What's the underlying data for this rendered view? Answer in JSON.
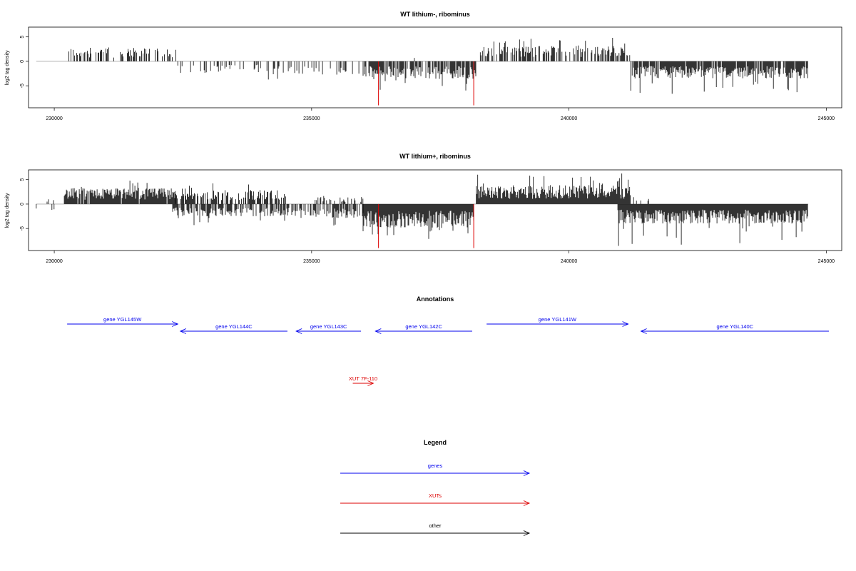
{
  "chart_data": [
    {
      "type": "bar",
      "title": "WT lithium-, ribominus",
      "ylabel": "log2 tag density",
      "xlim": [
        229500,
        245300
      ],
      "ylim": [
        -9.5,
        7
      ],
      "x_ticks": [
        230000,
        235000,
        240000,
        245000
      ],
      "x_tick_labels": [
        "230000",
        "235000",
        "240000",
        "245000"
      ],
      "y_ticks": [
        5,
        0,
        -5
      ],
      "y_tick_labels": [
        "5",
        "0",
        "-5"
      ],
      "baseline_range": [
        229650,
        244650
      ],
      "bar_color": "#000000",
      "highlight_color": "#dd0000",
      "segments": [
        {
          "start": 230270,
          "end": 232400,
          "sign": 1,
          "avg": 2.2,
          "max": 4.2,
          "density": 0.45
        },
        {
          "start": 232400,
          "end": 234200,
          "sign": -1,
          "avg": 1.9,
          "max": 3.8,
          "density": 0.32
        },
        {
          "start": 234200,
          "end": 236000,
          "sign": -1,
          "avg": 2.2,
          "max": 4.5,
          "density": 0.28
        },
        {
          "start": 236000,
          "end": 238200,
          "sign": -1,
          "avg": 2.9,
          "max": 6.2,
          "density": 0.75
        },
        {
          "start": 236900,
          "end": 237200,
          "sign": 1,
          "avg": 0.8,
          "max": 1.6,
          "density": 0.05
        },
        {
          "start": 238250,
          "end": 239850,
          "sign": 1,
          "avg": 2.5,
          "max": 5.0,
          "density": 0.6
        },
        {
          "start": 239850,
          "end": 241200,
          "sign": 1,
          "avg": 2.5,
          "max": 5.0,
          "density": 0.55
        },
        {
          "start": 241200,
          "end": 244650,
          "sign": -1,
          "avg": 2.8,
          "max": 6.7,
          "density": 0.9
        }
      ],
      "highlights": [
        {
          "x": 236300,
          "y": -9
        },
        {
          "x": 238150,
          "y": -9
        }
      ]
    },
    {
      "type": "bar",
      "title": "WT lithium+, ribominus",
      "ylabel": "log2 tag density",
      "xlim": [
        229500,
        245300
      ],
      "ylim": [
        -9.5,
        7
      ],
      "x_ticks": [
        230000,
        235000,
        240000,
        245000
      ],
      "x_tick_labels": [
        "230000",
        "235000",
        "240000",
        "245000"
      ],
      "y_ticks": [
        5,
        0,
        -5
      ],
      "y_tick_labels": [
        "5",
        "0",
        "-5"
      ],
      "baseline_range": [
        229650,
        244650
      ],
      "bar_color": "#000000",
      "highlight_color": "#dd0000",
      "segments": [
        {
          "start": 229650,
          "end": 230000,
          "sign": -1,
          "avg": 1.0,
          "max": 3.3,
          "density": 0.08
        },
        {
          "start": 229750,
          "end": 230050,
          "sign": 1,
          "avg": 0.8,
          "max": 1.3,
          "density": 0.06
        },
        {
          "start": 230180,
          "end": 232350,
          "sign": 1,
          "avg": 2.6,
          "max": 4.9,
          "density": 0.95
        },
        {
          "start": 232350,
          "end": 234500,
          "sign": 1,
          "avg": 2.3,
          "max": 4.3,
          "density": 0.55
        },
        {
          "start": 232300,
          "end": 234600,
          "sign": -1,
          "avg": 2.0,
          "max": 4.6,
          "density": 0.7
        },
        {
          "start": 234600,
          "end": 236000,
          "sign": -1,
          "avg": 2.3,
          "max": 5.9,
          "density": 0.55
        },
        {
          "start": 235000,
          "end": 236000,
          "sign": 1,
          "avg": 1.2,
          "max": 2.3,
          "density": 0.3
        },
        {
          "start": 236000,
          "end": 238150,
          "sign": -1,
          "avg": 3.9,
          "max": 7.4,
          "density": 1.0
        },
        {
          "start": 238200,
          "end": 241200,
          "sign": 1,
          "avg": 3.1,
          "max": 6.3,
          "density": 1.0
        },
        {
          "start": 241200,
          "end": 241600,
          "sign": 1,
          "avg": 0.9,
          "max": 1.9,
          "density": 0.2
        },
        {
          "start": 240950,
          "end": 244650,
          "sign": -1,
          "avg": 3.2,
          "max": 8.7,
          "density": 1.0
        }
      ],
      "highlights": [
        {
          "x": 236300,
          "y": -9
        },
        {
          "x": 238150,
          "y": -9
        }
      ]
    },
    {
      "type": "annotation-track",
      "title": "Annotations",
      "xlim": [
        229500,
        245300
      ],
      "features": [
        {
          "label": "gene YGL145W",
          "start": 230250,
          "end": 232400,
          "strand": "+",
          "kind": "gene",
          "row": 0
        },
        {
          "label": "gene YGL144C",
          "start": 232450,
          "end": 234530,
          "strand": "-",
          "kind": "gene",
          "row": 1
        },
        {
          "label": "gene YGL143C",
          "start": 234700,
          "end": 235960,
          "strand": "-",
          "kind": "gene",
          "row": 1
        },
        {
          "label": "gene YGL142C",
          "start": 236240,
          "end": 238120,
          "strand": "-",
          "kind": "gene",
          "row": 1
        },
        {
          "label": "gene YGL141W",
          "start": 238400,
          "end": 241150,
          "strand": "+",
          "kind": "gene",
          "row": 0
        },
        {
          "label": "gene YGL140C",
          "start": 241400,
          "end": 245050,
          "strand": "-",
          "kind": "gene",
          "row": 1
        },
        {
          "label": "XUT 7F-110",
          "start": 235800,
          "end": 236200,
          "strand": "+",
          "kind": "xut",
          "row": 2
        }
      ]
    }
  ],
  "legend": {
    "title": "Legend",
    "items": [
      {
        "label": "genes",
        "color": "#0000ee"
      },
      {
        "label": "XUTs",
        "color": "#dd0000"
      },
      {
        "label": "other",
        "color": "#000000"
      }
    ]
  },
  "colors": {
    "gene": "#0000ee",
    "xut": "#dd0000",
    "other": "#000000",
    "baseline": "#aaaaaa"
  }
}
